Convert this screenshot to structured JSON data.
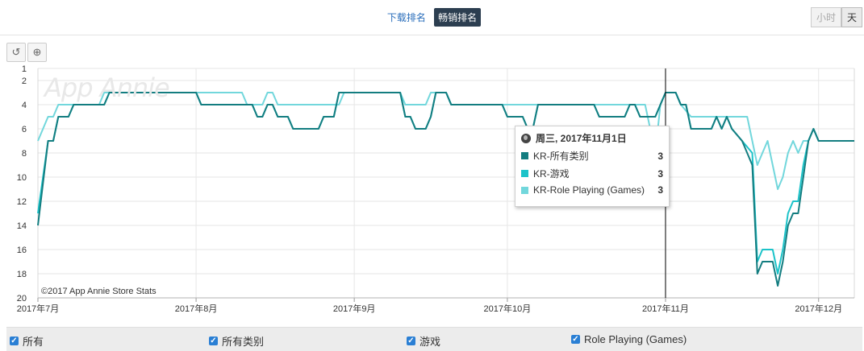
{
  "tabs": {
    "download": "下载排名",
    "grossing": "畅销排名"
  },
  "granularity": {
    "hour": "小时",
    "day": "天"
  },
  "tools": {
    "reset_icon": "reset-icon",
    "zoom_icon": "zoom-icon"
  },
  "watermark": "App Annie",
  "copyright": "©2017 App Annie Store Stats",
  "tooltip": {
    "date": "周三, 2017年11月1日",
    "rows": [
      {
        "name": "KR-所有类别",
        "value": "3",
        "color": "#137d80"
      },
      {
        "name": "KR-游戏",
        "value": "3",
        "color": "#1cc3c9"
      },
      {
        "name": "KR-Role Playing (Games)",
        "value": "3",
        "color": "#72d7dc"
      }
    ]
  },
  "legend": {
    "all": "所有",
    "items": [
      "所有类别",
      "游戏",
      "Role Playing (Games)"
    ]
  },
  "chart_data": {
    "type": "line",
    "y_reversed": true,
    "ylim": [
      1,
      20
    ],
    "yticks": [
      1,
      2,
      4,
      6,
      8,
      10,
      12,
      14,
      16,
      18,
      20
    ],
    "xlim": [
      "2017-07-01",
      "2017-12-08"
    ],
    "xtick_labels": [
      {
        "date": "2017-07-01",
        "label": "2017年7月"
      },
      {
        "date": "2017-08-01",
        "label": "2017年8月"
      },
      {
        "date": "2017-09-01",
        "label": "2017年9月"
      },
      {
        "date": "2017-10-01",
        "label": "2017年10月"
      },
      {
        "date": "2017-11-01",
        "label": "2017年11月"
      },
      {
        "date": "2017-12-01",
        "label": "2017年12月"
      }
    ],
    "crosshair_date": "2017-11-01",
    "series": [
      {
        "name": "KR-所有类别",
        "color": "#137d80",
        "points": [
          [
            "2017-07-01",
            14
          ],
          [
            "2017-07-03",
            7
          ],
          [
            "2017-07-04",
            7
          ],
          [
            "2017-07-05",
            5
          ],
          [
            "2017-07-07",
            5
          ],
          [
            "2017-07-08",
            4
          ],
          [
            "2017-07-14",
            4
          ],
          [
            "2017-07-15",
            3
          ],
          [
            "2017-08-01",
            3
          ],
          [
            "2017-08-02",
            4
          ],
          [
            "2017-08-12",
            4
          ],
          [
            "2017-08-13",
            5
          ],
          [
            "2017-08-14",
            5
          ],
          [
            "2017-08-15",
            4
          ],
          [
            "2017-08-16",
            4
          ],
          [
            "2017-08-17",
            5
          ],
          [
            "2017-08-19",
            5
          ],
          [
            "2017-08-20",
            6
          ],
          [
            "2017-08-25",
            6
          ],
          [
            "2017-08-26",
            5
          ],
          [
            "2017-08-28",
            5
          ],
          [
            "2017-08-29",
            3
          ],
          [
            "2017-09-10",
            3
          ],
          [
            "2017-09-11",
            5
          ],
          [
            "2017-09-12",
            5
          ],
          [
            "2017-09-13",
            6
          ],
          [
            "2017-09-15",
            6
          ],
          [
            "2017-09-16",
            5
          ],
          [
            "2017-09-17",
            3
          ],
          [
            "2017-09-19",
            3
          ],
          [
            "2017-09-20",
            4
          ],
          [
            "2017-09-30",
            4
          ],
          [
            "2017-10-01",
            5
          ],
          [
            "2017-10-04",
            5
          ],
          [
            "2017-10-05",
            6
          ],
          [
            "2017-10-06",
            6
          ],
          [
            "2017-10-07",
            4
          ],
          [
            "2017-10-18",
            4
          ],
          [
            "2017-10-19",
            5
          ],
          [
            "2017-10-24",
            5
          ],
          [
            "2017-10-25",
            4
          ],
          [
            "2017-10-26",
            4
          ],
          [
            "2017-10-27",
            5
          ],
          [
            "2017-10-30",
            5
          ],
          [
            "2017-10-31",
            4
          ],
          [
            "2017-11-01",
            3
          ],
          [
            "2017-11-03",
            3
          ],
          [
            "2017-11-04",
            4
          ],
          [
            "2017-11-05",
            4
          ],
          [
            "2017-11-06",
            6
          ],
          [
            "2017-11-10",
            6
          ],
          [
            "2017-11-11",
            5
          ],
          [
            "2017-11-12",
            6
          ],
          [
            "2017-11-13",
            5
          ],
          [
            "2017-11-14",
            6
          ],
          [
            "2017-11-16",
            7
          ],
          [
            "2017-11-18",
            9
          ],
          [
            "2017-11-19",
            18
          ],
          [
            "2017-11-20",
            17
          ],
          [
            "2017-11-22",
            17
          ],
          [
            "2017-11-23",
            19
          ],
          [
            "2017-11-24",
            17
          ],
          [
            "2017-11-25",
            14
          ],
          [
            "2017-11-26",
            13
          ],
          [
            "2017-11-27",
            13
          ],
          [
            "2017-11-28",
            10
          ],
          [
            "2017-11-29",
            7
          ],
          [
            "2017-11-30",
            6
          ],
          [
            "2017-12-01",
            7
          ],
          [
            "2017-12-08",
            7
          ]
        ]
      },
      {
        "name": "KR-游戏",
        "color": "#1cc3c9",
        "points": [
          [
            "2017-07-01",
            13
          ],
          [
            "2017-07-02",
            10
          ],
          [
            "2017-07-03",
            7
          ],
          [
            "2017-07-04",
            7
          ],
          [
            "2017-07-05",
            5
          ],
          [
            "2017-07-07",
            5
          ],
          [
            "2017-07-08",
            4
          ],
          [
            "2017-07-14",
            4
          ],
          [
            "2017-07-15",
            3
          ],
          [
            "2017-08-01",
            3
          ],
          [
            "2017-08-02",
            4
          ],
          [
            "2017-08-12",
            4
          ],
          [
            "2017-08-13",
            5
          ],
          [
            "2017-08-14",
            5
          ],
          [
            "2017-08-15",
            4
          ],
          [
            "2017-08-16",
            4
          ],
          [
            "2017-08-17",
            5
          ],
          [
            "2017-08-19",
            5
          ],
          [
            "2017-08-20",
            6
          ],
          [
            "2017-08-25",
            6
          ],
          [
            "2017-08-26",
            5
          ],
          [
            "2017-08-28",
            5
          ],
          [
            "2017-08-29",
            3
          ],
          [
            "2017-09-10",
            3
          ],
          [
            "2017-09-11",
            5
          ],
          [
            "2017-09-12",
            5
          ],
          [
            "2017-09-13",
            6
          ],
          [
            "2017-09-15",
            6
          ],
          [
            "2017-09-16",
            5
          ],
          [
            "2017-09-17",
            3
          ],
          [
            "2017-09-19",
            3
          ],
          [
            "2017-09-20",
            4
          ],
          [
            "2017-09-30",
            4
          ],
          [
            "2017-10-01",
            5
          ],
          [
            "2017-10-04",
            5
          ],
          [
            "2017-10-05",
            6
          ],
          [
            "2017-10-06",
            6
          ],
          [
            "2017-10-07",
            4
          ],
          [
            "2017-10-18",
            4
          ],
          [
            "2017-10-19",
            5
          ],
          [
            "2017-10-24",
            5
          ],
          [
            "2017-10-25",
            4
          ],
          [
            "2017-10-26",
            4
          ],
          [
            "2017-10-27",
            5
          ],
          [
            "2017-10-30",
            5
          ],
          [
            "2017-10-31",
            4
          ],
          [
            "2017-11-01",
            3
          ],
          [
            "2017-11-03",
            3
          ],
          [
            "2017-11-04",
            4
          ],
          [
            "2017-11-05",
            4
          ],
          [
            "2017-11-06",
            6
          ],
          [
            "2017-11-10",
            6
          ],
          [
            "2017-11-11",
            5
          ],
          [
            "2017-11-12",
            6
          ],
          [
            "2017-11-13",
            5
          ],
          [
            "2017-11-14",
            6
          ],
          [
            "2017-11-16",
            7
          ],
          [
            "2017-11-18",
            8
          ],
          [
            "2017-11-19",
            17
          ],
          [
            "2017-11-20",
            16
          ],
          [
            "2017-11-22",
            16
          ],
          [
            "2017-11-23",
            18
          ],
          [
            "2017-11-24",
            16
          ],
          [
            "2017-11-25",
            13
          ],
          [
            "2017-11-26",
            12
          ],
          [
            "2017-11-27",
            12
          ],
          [
            "2017-11-28",
            9
          ],
          [
            "2017-11-29",
            7
          ],
          [
            "2017-11-30",
            6
          ],
          [
            "2017-12-01",
            7
          ],
          [
            "2017-12-08",
            7
          ]
        ]
      },
      {
        "name": "KR-Role Playing (Games)",
        "color": "#72d7dc",
        "points": [
          [
            "2017-07-01",
            7
          ],
          [
            "2017-07-03",
            5
          ],
          [
            "2017-07-04",
            5
          ],
          [
            "2017-07-05",
            4
          ],
          [
            "2017-07-13",
            4
          ],
          [
            "2017-07-14",
            3
          ],
          [
            "2017-08-10",
            3
          ],
          [
            "2017-08-11",
            4
          ],
          [
            "2017-08-14",
            4
          ],
          [
            "2017-08-15",
            3
          ],
          [
            "2017-08-16",
            3
          ],
          [
            "2017-08-17",
            4
          ],
          [
            "2017-08-29",
            4
          ],
          [
            "2017-08-30",
            3
          ],
          [
            "2017-09-10",
            3
          ],
          [
            "2017-09-11",
            4
          ],
          [
            "2017-09-15",
            4
          ],
          [
            "2017-09-16",
            3
          ],
          [
            "2017-09-19",
            3
          ],
          [
            "2017-09-20",
            4
          ],
          [
            "2017-09-30",
            4
          ],
          [
            "2017-10-01",
            4
          ],
          [
            "2017-10-06",
            4
          ],
          [
            "2017-10-07",
            4
          ],
          [
            "2017-10-28",
            4
          ],
          [
            "2017-10-30",
            8
          ],
          [
            "2017-10-31",
            4
          ],
          [
            "2017-11-01",
            3
          ],
          [
            "2017-11-03",
            3
          ],
          [
            "2017-11-04",
            4
          ],
          [
            "2017-11-06",
            5
          ],
          [
            "2017-11-13",
            5
          ],
          [
            "2017-11-14",
            5
          ],
          [
            "2017-11-15",
            5
          ],
          [
            "2017-11-17",
            5
          ],
          [
            "2017-11-19",
            9
          ],
          [
            "2017-11-20",
            8
          ],
          [
            "2017-11-21",
            7
          ],
          [
            "2017-11-22",
            9
          ],
          [
            "2017-11-23",
            11
          ],
          [
            "2017-11-24",
            10
          ],
          [
            "2017-11-25",
            8
          ],
          [
            "2017-11-26",
            7
          ],
          [
            "2017-11-27",
            8
          ],
          [
            "2017-11-28",
            7
          ],
          [
            "2017-11-29",
            7
          ],
          [
            "2017-11-30",
            6
          ],
          [
            "2017-12-01",
            7
          ],
          [
            "2017-12-08",
            7
          ]
        ]
      }
    ]
  }
}
